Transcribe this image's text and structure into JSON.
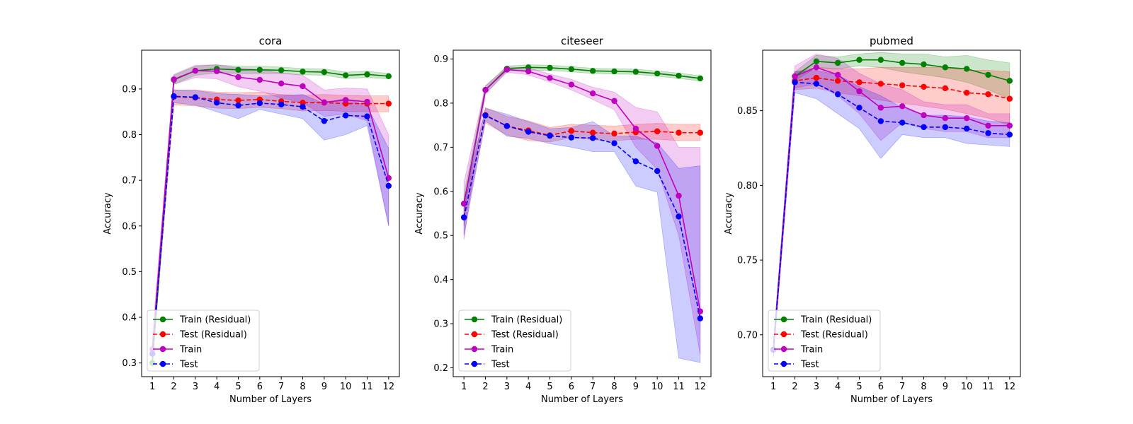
{
  "chart_data": [
    {
      "type": "line",
      "title": "cora",
      "xlabel": "Number of Layers",
      "ylabel": "Accuracy",
      "x": [
        1,
        2,
        3,
        4,
        5,
        6,
        7,
        8,
        9,
        10,
        11,
        12
      ],
      "xlim": [
        0.5,
        12.5
      ],
      "ylim": [
        0.27,
        0.985
      ],
      "yticks": [
        0.3,
        0.4,
        0.5,
        0.6,
        0.7,
        0.8,
        0.9
      ],
      "ytick_labels": [
        "0.3",
        "0.4",
        "0.5",
        "0.6",
        "0.7",
        "0.8",
        "0.9"
      ],
      "grid": false,
      "legend_position": "lower-left",
      "series": [
        {
          "name": "Train (Residual)",
          "color": "#008000",
          "dashed": false,
          "values": [
            0.3,
            0.92,
            0.94,
            0.944,
            0.942,
            0.942,
            0.941,
            0.938,
            0.937,
            0.93,
            0.932,
            0.928
          ],
          "lower": [
            0.29,
            0.91,
            0.93,
            0.935,
            0.934,
            0.934,
            0.934,
            0.931,
            0.93,
            0.923,
            0.925,
            0.922
          ],
          "upper": [
            0.31,
            0.93,
            0.95,
            0.953,
            0.95,
            0.95,
            0.948,
            0.945,
            0.944,
            0.937,
            0.939,
            0.934
          ]
        },
        {
          "name": "Test (Residual)",
          "color": "#ff0000",
          "dashed": true,
          "values": [
            0.32,
            0.883,
            0.881,
            0.877,
            0.875,
            0.877,
            0.873,
            0.87,
            0.87,
            0.868,
            0.868,
            0.868
          ],
          "lower": [
            0.3,
            0.865,
            0.863,
            0.858,
            0.857,
            0.86,
            0.857,
            0.852,
            0.853,
            0.851,
            0.85,
            0.85
          ],
          "upper": [
            0.34,
            0.898,
            0.898,
            0.893,
            0.892,
            0.893,
            0.888,
            0.886,
            0.888,
            0.886,
            0.885,
            0.885
          ]
        },
        {
          "name": "Train",
          "color": "#bf00bf",
          "dashed": false,
          "values": [
            0.33,
            0.921,
            0.94,
            0.939,
            0.926,
            0.92,
            0.912,
            0.906,
            0.871,
            0.876,
            0.872,
            0.705
          ],
          "lower": [
            0.3,
            0.91,
            0.925,
            0.922,
            0.905,
            0.895,
            0.88,
            0.87,
            0.84,
            0.845,
            0.83,
            0.6
          ],
          "upper": [
            0.36,
            0.932,
            0.952,
            0.953,
            0.946,
            0.942,
            0.935,
            0.93,
            0.898,
            0.902,
            0.9,
            0.8
          ]
        },
        {
          "name": "Test",
          "color": "#0000ff",
          "dashed": true,
          "values": [
            0.32,
            0.884,
            0.882,
            0.87,
            0.864,
            0.869,
            0.866,
            0.861,
            0.83,
            0.842,
            0.84,
            0.688
          ],
          "lower": [
            0.3,
            0.87,
            0.865,
            0.85,
            0.835,
            0.855,
            0.845,
            0.835,
            0.788,
            0.8,
            0.82,
            0.6
          ],
          "upper": [
            0.34,
            0.898,
            0.897,
            0.89,
            0.888,
            0.885,
            0.885,
            0.888,
            0.868,
            0.88,
            0.862,
            0.77
          ]
        }
      ]
    },
    {
      "type": "line",
      "title": "citeseer",
      "xlabel": "Number of Layers",
      "ylabel": "Accuracy",
      "x": [
        1,
        2,
        3,
        4,
        5,
        6,
        7,
        8,
        9,
        10,
        11,
        12
      ],
      "xlim": [
        0.5,
        12.5
      ],
      "ylim": [
        0.18,
        0.92
      ],
      "yticks": [
        0.2,
        0.3,
        0.4,
        0.5,
        0.6,
        0.7,
        0.8,
        0.9
      ],
      "ytick_labels": [
        "0.2",
        "0.3",
        "0.4",
        "0.5",
        "0.6",
        "0.7",
        "0.8",
        "0.9"
      ],
      "grid": false,
      "legend_position": "lower-left",
      "series": [
        {
          "name": "Train (Residual)",
          "color": "#008000",
          "dashed": false,
          "values": [
            0.572,
            0.83,
            0.878,
            0.881,
            0.88,
            0.877,
            0.873,
            0.872,
            0.871,
            0.867,
            0.862,
            0.856
          ],
          "lower": [
            0.552,
            0.822,
            0.872,
            0.875,
            0.874,
            0.871,
            0.867,
            0.866,
            0.865,
            0.861,
            0.856,
            0.85
          ],
          "upper": [
            0.592,
            0.838,
            0.884,
            0.887,
            0.886,
            0.883,
            0.879,
            0.878,
            0.877,
            0.873,
            0.868,
            0.862
          ]
        },
        {
          "name": "Test (Residual)",
          "color": "#ff0000",
          "dashed": true,
          "values": [
            0.541,
            0.773,
            0.748,
            0.738,
            0.727,
            0.737,
            0.733,
            0.731,
            0.734,
            0.736,
            0.733,
            0.733
          ],
          "lower": [
            0.521,
            0.755,
            0.728,
            0.715,
            0.712,
            0.722,
            0.717,
            0.715,
            0.718,
            0.718,
            0.715,
            0.715
          ],
          "upper": [
            0.561,
            0.79,
            0.77,
            0.76,
            0.745,
            0.752,
            0.75,
            0.748,
            0.752,
            0.754,
            0.752,
            0.752
          ]
        },
        {
          "name": "Train",
          "color": "#bf00bf",
          "dashed": false,
          "values": [
            0.572,
            0.83,
            0.876,
            0.872,
            0.857,
            0.842,
            0.822,
            0.805,
            0.742,
            0.703,
            0.59,
            0.328
          ],
          "lower": [
            0.49,
            0.82,
            0.87,
            0.864,
            0.848,
            0.83,
            0.808,
            0.785,
            0.7,
            0.65,
            0.5,
            0.23
          ],
          "upper": [
            0.62,
            0.84,
            0.882,
            0.88,
            0.866,
            0.854,
            0.836,
            0.825,
            0.79,
            0.78,
            0.7,
            0.7
          ]
        },
        {
          "name": "Test",
          "color": "#0000ff",
          "dashed": true,
          "values": [
            0.541,
            0.772,
            0.748,
            0.735,
            0.726,
            0.722,
            0.721,
            0.709,
            0.668,
            0.646,
            0.543,
            0.312
          ],
          "lower": [
            0.5,
            0.76,
            0.725,
            0.72,
            0.708,
            0.7,
            0.69,
            0.69,
            0.612,
            0.598,
            0.222,
            0.212
          ],
          "upper": [
            0.58,
            0.788,
            0.775,
            0.758,
            0.742,
            0.745,
            0.758,
            0.726,
            0.725,
            0.71,
            0.652,
            0.658
          ]
        }
      ]
    },
    {
      "type": "line",
      "title": "pubmed",
      "xlabel": "Number of Layers",
      "ylabel": "Accuracy",
      "x": [
        1,
        2,
        3,
        4,
        5,
        6,
        7,
        8,
        9,
        10,
        11,
        12
      ],
      "xlim": [
        0.5,
        12.5
      ],
      "ylim": [
        0.672,
        0.8905
      ],
      "yticks": [
        0.7,
        0.75,
        0.8,
        0.85
      ],
      "ytick_labels": [
        "0.70",
        "0.75",
        "0.80",
        "0.85"
      ],
      "grid": false,
      "legend_position": "lower-left",
      "series": [
        {
          "name": "Train (Residual)",
          "color": "#008000",
          "dashed": false,
          "values": [
            0.69,
            0.873,
            0.883,
            0.882,
            0.884,
            0.884,
            0.882,
            0.881,
            0.879,
            0.878,
            0.874,
            0.87
          ],
          "lower": [
            0.685,
            0.87,
            0.879,
            0.878,
            0.88,
            0.879,
            0.876,
            0.874,
            0.872,
            0.869,
            0.864,
            0.858
          ],
          "upper": [
            0.695,
            0.876,
            0.887,
            0.886,
            0.888,
            0.889,
            0.888,
            0.888,
            0.886,
            0.887,
            0.884,
            0.882
          ]
        },
        {
          "name": "Test (Residual)",
          "color": "#ff0000",
          "dashed": true,
          "values": [
            0.69,
            0.87,
            0.872,
            0.87,
            0.869,
            0.868,
            0.867,
            0.866,
            0.865,
            0.862,
            0.861,
            0.858
          ],
          "lower": [
            0.685,
            0.864,
            0.865,
            0.862,
            0.86,
            0.857,
            0.855,
            0.853,
            0.851,
            0.848,
            0.845,
            0.84
          ],
          "upper": [
            0.695,
            0.876,
            0.879,
            0.878,
            0.878,
            0.879,
            0.879,
            0.879,
            0.879,
            0.877,
            0.877,
            0.876
          ]
        },
        {
          "name": "Train",
          "color": "#bf00bf",
          "dashed": false,
          "values": [
            0.69,
            0.873,
            0.879,
            0.874,
            0.863,
            0.852,
            0.853,
            0.847,
            0.845,
            0.845,
            0.84,
            0.84
          ],
          "lower": [
            0.685,
            0.865,
            0.868,
            0.86,
            0.848,
            0.83,
            0.842,
            0.838,
            0.836,
            0.836,
            0.832,
            0.832
          ],
          "upper": [
            0.695,
            0.88,
            0.888,
            0.885,
            0.875,
            0.868,
            0.864,
            0.856,
            0.854,
            0.854,
            0.848,
            0.848
          ]
        },
        {
          "name": "Test",
          "color": "#0000ff",
          "dashed": true,
          "values": [
            0.69,
            0.869,
            0.868,
            0.861,
            0.852,
            0.843,
            0.842,
            0.839,
            0.839,
            0.838,
            0.835,
            0.834
          ],
          "lower": [
            0.685,
            0.862,
            0.858,
            0.848,
            0.838,
            0.818,
            0.834,
            0.832,
            0.832,
            0.828,
            0.827,
            0.826
          ],
          "upper": [
            0.695,
            0.876,
            0.877,
            0.874,
            0.866,
            0.86,
            0.852,
            0.847,
            0.847,
            0.846,
            0.843,
            0.842
          ]
        }
      ]
    }
  ]
}
